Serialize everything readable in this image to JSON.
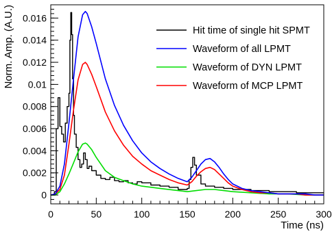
{
  "chart_data": {
    "type": "line",
    "xlabel": "Time (ns)",
    "ylabel": "Norm. Amp. (A.U.)",
    "xlim": [
      0,
      300
    ],
    "ylim": [
      -0.0008,
      0.0172
    ],
    "x_ticks": [
      0,
      50,
      100,
      150,
      200,
      250,
      300
    ],
    "y_ticks": [
      0,
      0.002,
      0.004,
      0.006,
      0.008,
      0.01,
      0.012,
      0.014,
      0.016
    ],
    "x_tick_labels": [
      "0",
      "50",
      "100",
      "150",
      "200",
      "250",
      "300"
    ],
    "y_tick_labels": [
      "0",
      "0.002",
      "0.004",
      "0.006",
      "0.008",
      "0.01",
      "0.012",
      "0.014",
      "0.016"
    ],
    "grid": false,
    "legend_position": "top-right",
    "series": [
      {
        "name": "Hit time of single hit SPMT",
        "color": "#000000",
        "style": "histogram",
        "x": [
          0,
          2,
          4,
          6,
          8,
          10,
          12,
          14,
          16,
          18,
          20,
          21,
          22,
          23,
          24,
          25,
          26,
          28,
          30,
          32,
          34,
          36,
          38,
          40,
          42,
          45,
          50,
          55,
          60,
          65,
          70,
          75,
          80,
          85,
          90,
          95,
          100,
          110,
          120,
          130,
          140,
          150,
          152,
          154,
          156,
          158,
          160,
          165,
          170,
          180,
          190,
          200,
          210,
          220,
          230,
          240,
          250,
          260,
          270,
          280,
          290,
          300
        ],
        "y": [
          0.0,
          0.0,
          0.0003,
          0.006,
          0.0088,
          0.0062,
          0.0055,
          0.0048,
          0.0065,
          0.008,
          0.0092,
          0.014,
          0.0165,
          0.0145,
          0.0105,
          0.0072,
          0.0055,
          0.0043,
          0.0032,
          0.0025,
          0.0028,
          0.0038,
          0.0032,
          0.0024,
          0.0026,
          0.0022,
          0.0018,
          0.0015,
          0.0014,
          0.0016,
          0.0013,
          0.0012,
          0.0013,
          0.0011,
          0.001,
          0.0012,
          0.0011,
          0.0009,
          0.0008,
          0.0007,
          0.0005,
          0.0006,
          0.0014,
          0.0025,
          0.0034,
          0.0027,
          0.0018,
          0.001,
          0.0008,
          0.0007,
          0.0006,
          0.0005,
          0.0005,
          0.0004,
          0.0004,
          0.0003,
          0.0003,
          0.0003,
          0.0002,
          0.0002,
          0.0002,
          0.0002
        ]
      },
      {
        "name": "Waveform of all LPMT",
        "color": "#0000ff",
        "x": [
          0,
          5,
          10,
          15,
          20,
          25,
          30,
          35,
          38,
          40,
          45,
          50,
          60,
          70,
          80,
          90,
          100,
          110,
          120,
          130,
          140,
          150,
          155,
          160,
          165,
          170,
          175,
          180,
          185,
          190,
          195,
          200,
          210,
          220,
          230,
          240,
          250,
          260,
          270,
          280,
          290,
          300
        ],
        "y": [
          0.0,
          0.0001,
          0.0008,
          0.0028,
          0.0065,
          0.0105,
          0.0143,
          0.0163,
          0.0166,
          0.0164,
          0.0152,
          0.0137,
          0.0105,
          0.0081,
          0.0063,
          0.0049,
          0.0038,
          0.003,
          0.0024,
          0.0019,
          0.0015,
          0.0012,
          0.0016,
          0.0022,
          0.0028,
          0.0032,
          0.0033,
          0.003,
          0.0025,
          0.0019,
          0.0014,
          0.001,
          0.0006,
          0.0004,
          0.0003,
          0.0002,
          0.0001,
          0.0001,
          0.0001,
          0.0001,
          0.0,
          0.0
        ]
      },
      {
        "name": "Waveform of DYN LPMT",
        "color": "#00dd00",
        "x": [
          0,
          5,
          10,
          15,
          20,
          25,
          30,
          35,
          38,
          40,
          45,
          50,
          55,
          60,
          70,
          80,
          90,
          100,
          120,
          140,
          150,
          160,
          170,
          175,
          180,
          190,
          200,
          220,
          240,
          260,
          280,
          300
        ],
        "y": [
          0.0,
          0.0,
          0.0003,
          0.001,
          0.0019,
          0.0029,
          0.0039,
          0.0046,
          0.0047,
          0.0046,
          0.0041,
          0.0034,
          0.0028,
          0.0022,
          0.0016,
          0.0013,
          0.001,
          0.0008,
          0.0006,
          0.0004,
          0.0003,
          0.0004,
          0.0005,
          0.0005,
          0.0005,
          0.0004,
          0.0003,
          0.0002,
          0.0001,
          0.0001,
          0.0,
          0.0
        ]
      },
      {
        "name": "Waveform of MCP LPMT",
        "color": "#ff0000",
        "x": [
          0,
          5,
          10,
          15,
          20,
          25,
          30,
          35,
          38,
          40,
          45,
          50,
          60,
          70,
          80,
          90,
          100,
          110,
          120,
          130,
          140,
          150,
          155,
          160,
          165,
          170,
          175,
          180,
          185,
          190,
          195,
          200,
          210,
          220,
          230,
          240,
          250,
          260,
          270,
          280,
          290,
          300
        ],
        "y": [
          0.0,
          0.0001,
          0.0005,
          0.0018,
          0.0046,
          0.0077,
          0.0104,
          0.0118,
          0.012,
          0.0118,
          0.0109,
          0.0098,
          0.0075,
          0.0058,
          0.0045,
          0.0035,
          0.0028,
          0.0022,
          0.0018,
          0.0014,
          0.0011,
          0.0009,
          0.0012,
          0.0017,
          0.0021,
          0.0024,
          0.0025,
          0.0023,
          0.0019,
          0.0015,
          0.0011,
          0.0008,
          0.0005,
          0.0003,
          0.0002,
          0.0002,
          0.0001,
          0.0001,
          0.0001,
          0.0,
          0.0,
          0.0
        ]
      }
    ]
  }
}
